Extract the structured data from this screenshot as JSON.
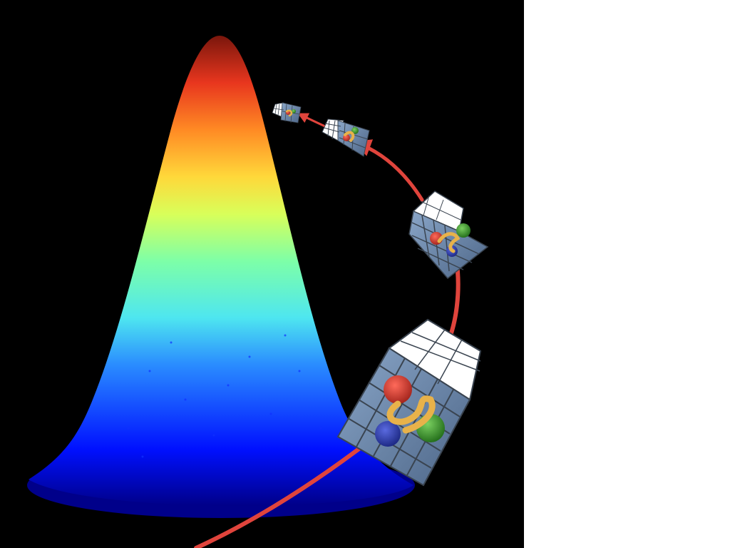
{
  "scene": {
    "background": "#000000",
    "margin_background": "#ffffff",
    "distribution": {
      "shape": "bell-curve",
      "colormap": [
        "#00008b",
        "#0000ff",
        "#2a7fff",
        "#4fd6ff",
        "#7dffb0",
        "#d8ff5a",
        "#ffdc3c",
        "#ff8c24",
        "#e8361e",
        "#8b1a10"
      ]
    },
    "arrow_color": "#e0443c",
    "cell_blocks": 4,
    "molecule_colors": {
      "red_sphere": "#c8322a",
      "green_sphere": "#3a8f2a",
      "blue_sphere": "#2f3fae",
      "ribbon": "#e8b24a"
    },
    "block_colors": {
      "top_face": "#ffffff",
      "front_face": "#6a86ab",
      "grid_lines": "#3a4450"
    }
  }
}
